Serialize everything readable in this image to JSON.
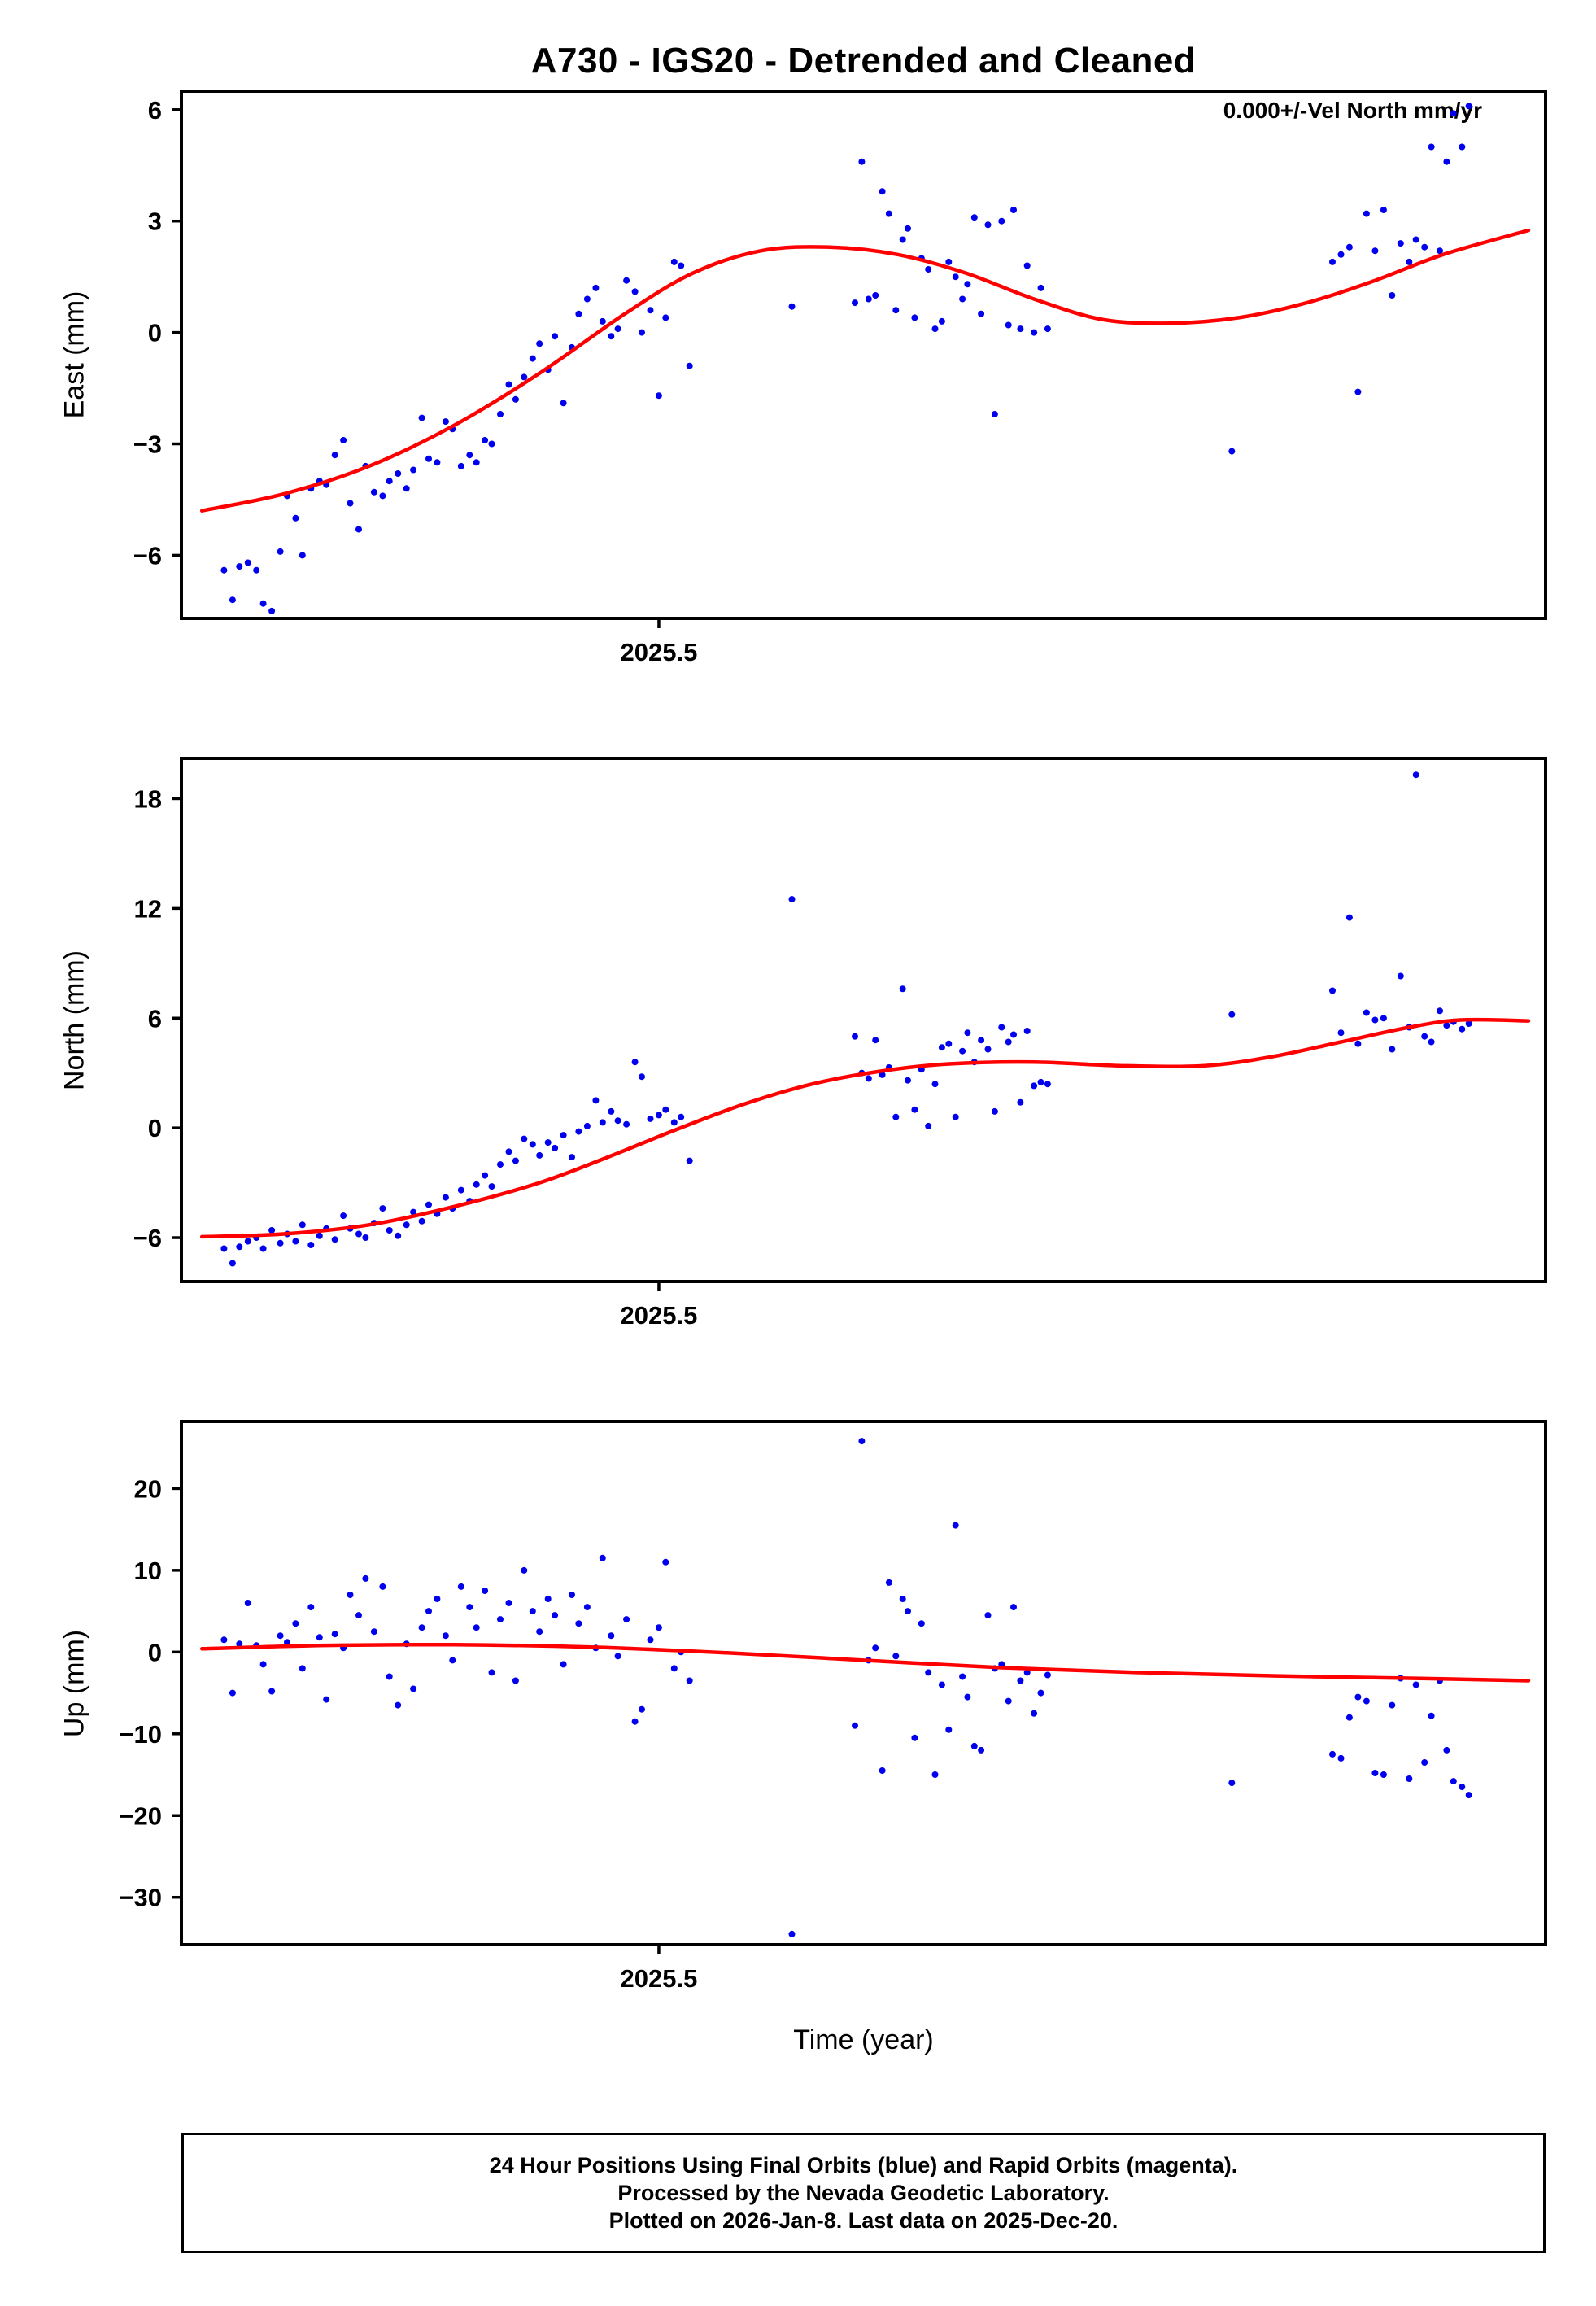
{
  "footer": {
    "lines": [
      "24 Hour Positions Using Final Orbits (blue) and Rapid Orbits (magenta).",
      "Processed by the Nevada Geodetic Laboratory.",
      "Plotted on 2026-Jan-8. Last data on 2025-Dec-20."
    ]
  },
  "colors": {
    "point_blue": "#0000ee",
    "trend_red": "#ff0000",
    "frame_black": "#000000"
  },
  "chart_data": {
    "type": "scatter",
    "title": "A730 - IGS20 - Detrended and Cleaned",
    "annotation": "0.000+/-Vel North mm/yr",
    "xlabel": "Time (year)",
    "grid": false,
    "legend": "none",
    "xlim": [
      2025.22,
      2026.02
    ],
    "x_tick": {
      "value": 2025.5,
      "label": "2025.5"
    },
    "x": [
      2025.245,
      2025.25,
      2025.254,
      2025.259,
      2025.264,
      2025.268,
      2025.273,
      2025.278,
      2025.282,
      2025.287,
      2025.291,
      2025.296,
      2025.301,
      2025.305,
      2025.31,
      2025.315,
      2025.319,
      2025.324,
      2025.328,
      2025.333,
      2025.338,
      2025.342,
      2025.347,
      2025.352,
      2025.356,
      2025.361,
      2025.365,
      2025.37,
      2025.375,
      2025.379,
      2025.384,
      2025.389,
      2025.393,
      2025.398,
      2025.402,
      2025.407,
      2025.412,
      2025.416,
      2025.421,
      2025.426,
      2025.43,
      2025.435,
      2025.439,
      2025.444,
      2025.449,
      2025.453,
      2025.458,
      2025.463,
      2025.467,
      2025.472,
      2025.476,
      2025.481,
      2025.486,
      2025.49,
      2025.495,
      2025.5,
      2025.504,
      2025.509,
      2025.513,
      2025.518,
      2025.578,
      2025.615,
      2025.619,
      2025.623,
      2025.627,
      2025.631,
      2025.635,
      2025.639,
      2025.643,
      2025.646,
      2025.65,
      2025.654,
      2025.658,
      2025.662,
      2025.666,
      2025.67,
      2025.674,
      2025.678,
      2025.681,
      2025.685,
      2025.689,
      2025.693,
      2025.697,
      2025.701,
      2025.705,
      2025.708,
      2025.712,
      2025.716,
      2025.72,
      2025.724,
      2025.728,
      2025.836,
      2025.895,
      2025.9,
      2025.905,
      2025.91,
      2025.915,
      2025.92,
      2025.925,
      2025.93,
      2025.935,
      2025.94,
      2025.944,
      2025.949,
      2025.953,
      2025.958,
      2025.962,
      2025.966,
      2025.971,
      2025.975
    ],
    "panels": [
      {
        "id": "east",
        "ylabel": "East (mm)",
        "ylim": [
          -7.7,
          6.5
        ],
        "yticks": [
          {
            "v": 6,
            "label": "6"
          },
          {
            "v": 3,
            "label": "3"
          },
          {
            "v": 0,
            "label": "0"
          },
          {
            "v": -3,
            "label": "−3"
          },
          {
            "v": -6,
            "label": "−6"
          }
        ],
        "values": [
          -6.4,
          -7.2,
          -6.3,
          -6.2,
          -6.4,
          -7.3,
          -7.5,
          -5.9,
          -4.4,
          -5.0,
          -6.0,
          -4.2,
          -4.0,
          -4.1,
          -3.3,
          -2.9,
          -4.6,
          -5.3,
          -3.6,
          -4.3,
          -4.4,
          -4.0,
          -3.8,
          -4.2,
          -3.7,
          -2.3,
          -3.4,
          -3.5,
          -2.4,
          -2.6,
          -3.6,
          -3.3,
          -3.5,
          -2.9,
          -3.0,
          -2.2,
          -1.4,
          -1.8,
          -1.2,
          -0.7,
          -0.3,
          -1.0,
          -0.1,
          -1.9,
          -0.4,
          0.5,
          0.9,
          1.2,
          0.3,
          -0.1,
          0.1,
          1.4,
          1.1,
          0.0,
          0.6,
          -1.7,
          0.4,
          1.9,
          1.8,
          -0.9,
          0.7,
          0.8,
          4.6,
          0.9,
          1.0,
          3.8,
          3.2,
          0.6,
          2.5,
          2.8,
          0.4,
          2.0,
          1.7,
          0.1,
          0.3,
          1.9,
          1.5,
          0.9,
          1.3,
          3.1,
          0.5,
          2.9,
          -2.2,
          3.0,
          0.2,
          3.3,
          0.1,
          1.8,
          0.0,
          1.2,
          0.1,
          -3.2,
          1.9,
          2.1,
          2.3,
          -1.6,
          3.2,
          2.2,
          3.3,
          1.0,
          2.4,
          1.9,
          2.5,
          2.3,
          5.0,
          2.2,
          4.6,
          5.9,
          5.0,
          6.1
        ],
        "trend": [
          [
            2025.232,
            -4.8
          ],
          [
            2025.28,
            -4.35
          ],
          [
            2025.33,
            -3.6
          ],
          [
            2025.38,
            -2.5
          ],
          [
            2025.43,
            -1.1
          ],
          [
            2025.48,
            0.5
          ],
          [
            2025.52,
            1.6
          ],
          [
            2025.56,
            2.2
          ],
          [
            2025.6,
            2.3
          ],
          [
            2025.64,
            2.1
          ],
          [
            2025.68,
            1.6
          ],
          [
            2025.72,
            0.9
          ],
          [
            2025.76,
            0.35
          ],
          [
            2025.8,
            0.25
          ],
          [
            2025.84,
            0.4
          ],
          [
            2025.88,
            0.8
          ],
          [
            2025.92,
            1.4
          ],
          [
            2025.96,
            2.1
          ],
          [
            2026.01,
            2.75
          ]
        ]
      },
      {
        "id": "north",
        "ylabel": "North (mm)",
        "ylim": [
          -8.4,
          20.2
        ],
        "yticks": [
          {
            "v": 18,
            "label": "18"
          },
          {
            "v": 12,
            "label": "12"
          },
          {
            "v": 6,
            "label": "6"
          },
          {
            "v": 0,
            "label": "0"
          },
          {
            "v": -6,
            "label": "−6"
          }
        ],
        "values": [
          -6.6,
          -7.4,
          -6.5,
          -6.2,
          -6.0,
          -6.6,
          -5.6,
          -6.3,
          -5.8,
          -6.2,
          -5.3,
          -6.4,
          -5.9,
          -5.5,
          -6.1,
          -4.8,
          -5.5,
          -5.8,
          -6.0,
          -5.2,
          -4.4,
          -5.6,
          -5.9,
          -5.3,
          -4.6,
          -5.1,
          -4.2,
          -4.7,
          -3.8,
          -4.4,
          -3.4,
          -4.0,
          -3.1,
          -2.6,
          -3.2,
          -2.0,
          -1.3,
          -1.8,
          -0.6,
          -0.9,
          -1.5,
          -0.8,
          -1.1,
          -0.4,
          -1.6,
          -0.2,
          0.1,
          1.5,
          0.3,
          0.9,
          0.4,
          0.2,
          3.6,
          2.8,
          0.5,
          0.7,
          1.0,
          0.3,
          0.6,
          -1.8,
          12.5,
          5.0,
          3.0,
          2.7,
          4.8,
          2.9,
          3.3,
          0.6,
          7.6,
          2.6,
          1.0,
          3.2,
          0.1,
          2.4,
          4.4,
          4.6,
          0.6,
          4.2,
          5.2,
          3.6,
          4.8,
          4.3,
          0.9,
          5.5,
          4.7,
          5.1,
          1.4,
          5.3,
          2.3,
          2.5,
          2.4,
          6.2,
          7.5,
          5.2,
          11.5,
          4.6,
          6.3,
          5.9,
          6.0,
          4.3,
          8.3,
          5.5,
          19.3,
          5.0,
          4.7,
          6.4,
          5.6,
          5.8,
          5.4,
          5.7
        ],
        "trend": [
          [
            2025.232,
            -5.95
          ],
          [
            2025.28,
            -5.8
          ],
          [
            2025.33,
            -5.3
          ],
          [
            2025.38,
            -4.3
          ],
          [
            2025.43,
            -3.0
          ],
          [
            2025.47,
            -1.6
          ],
          [
            2025.51,
            -0.1
          ],
          [
            2025.55,
            1.3
          ],
          [
            2025.59,
            2.4
          ],
          [
            2025.63,
            3.1
          ],
          [
            2025.67,
            3.5
          ],
          [
            2025.72,
            3.6
          ],
          [
            2025.77,
            3.4
          ],
          [
            2025.82,
            3.4
          ],
          [
            2025.86,
            3.9
          ],
          [
            2025.9,
            4.7
          ],
          [
            2025.94,
            5.5
          ],
          [
            2025.97,
            5.9
          ],
          [
            2026.01,
            5.85
          ]
        ]
      },
      {
        "id": "up",
        "ylabel": "Up (mm)",
        "ylim": [
          -35.8,
          28.2
        ],
        "yticks": [
          {
            "v": 20,
            "label": "20"
          },
          {
            "v": 10,
            "label": "10"
          },
          {
            "v": 0,
            "label": "0"
          },
          {
            "v": -10,
            "label": "−10"
          },
          {
            "v": -20,
            "label": "−20"
          },
          {
            "v": -30,
            "label": "−30"
          }
        ],
        "values": [
          1.5,
          -5.0,
          1.0,
          6.0,
          0.8,
          -1.5,
          -4.8,
          2.0,
          1.2,
          3.5,
          -2.0,
          5.5,
          1.8,
          -5.8,
          2.2,
          0.5,
          7.0,
          4.5,
          9.0,
          2.5,
          8.0,
          -3.0,
          -6.5,
          1.0,
          -4.5,
          3.0,
          5.0,
          6.5,
          2.0,
          -1.0,
          8.0,
          5.5,
          3.0,
          7.5,
          -2.5,
          4.0,
          6.0,
          -3.5,
          10.0,
          5.0,
          2.5,
          6.5,
          4.5,
          -1.5,
          7.0,
          3.5,
          5.5,
          0.5,
          11.5,
          2.0,
          -0.5,
          4.0,
          -8.5,
          -7.0,
          1.5,
          3.0,
          11.0,
          -2.0,
          0.0,
          -3.5,
          -34.5,
          -9.0,
          25.8,
          -1.0,
          0.5,
          -14.5,
          8.5,
          -0.5,
          6.5,
          5.0,
          -10.5,
          3.5,
          -2.5,
          -15.0,
          -4.0,
          -9.5,
          15.5,
          -3.0,
          -5.5,
          -11.5,
          -12.0,
          4.5,
          -2.0,
          -1.5,
          -6.0,
          5.5,
          -3.5,
          -2.5,
          -7.5,
          -5.0,
          -2.8,
          -16.0,
          -12.5,
          -13.0,
          -8.0,
          -5.5,
          -6.0,
          -14.8,
          -15.0,
          -6.5,
          -3.2,
          -15.5,
          -4.0,
          -13.5,
          -7.8,
          -3.5,
          -12.0,
          -15.8,
          -16.5,
          -17.5
        ],
        "trend": [
          [
            2025.232,
            0.4
          ],
          [
            2025.3,
            0.8
          ],
          [
            2025.38,
            0.9
          ],
          [
            2025.46,
            0.6
          ],
          [
            2025.54,
            -0.1
          ],
          [
            2025.62,
            -1.0
          ],
          [
            2025.7,
            -1.9
          ],
          [
            2025.78,
            -2.5
          ],
          [
            2025.86,
            -2.9
          ],
          [
            2025.94,
            -3.2
          ],
          [
            2026.01,
            -3.5
          ]
        ]
      }
    ]
  }
}
